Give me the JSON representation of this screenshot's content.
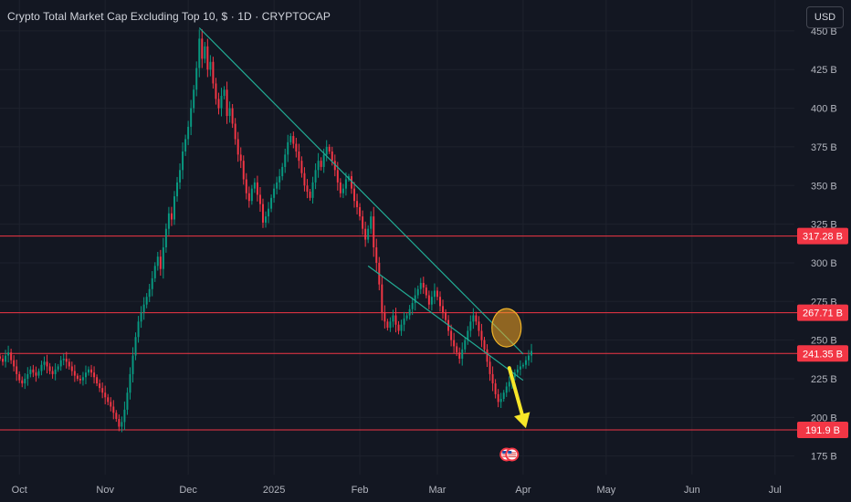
{
  "header": {
    "title": "Crypto Total Market Cap Excluding Top 10, $ · 1D · CRYPTOCAP",
    "currency": "USD"
  },
  "colors": {
    "background": "#131722",
    "grid": "#1e222d",
    "up": "#089981",
    "down": "#f23645",
    "level_line": "#f23645",
    "trendline": "#22ab94",
    "highlight_circle": "#f5a623",
    "arrow": "#f7e628",
    "axis_text": "#b2b5be"
  },
  "icons": {
    "event_flags": [
      "us-flag-icon",
      "us-flag-icon"
    ]
  },
  "chart_data": {
    "type": "candlestick",
    "title": "Crypto Total Market Cap Excluding Top 10, $ · 1D · CRYPTOCAP",
    "unit": "B",
    "x_ticks": [
      "Oct",
      "Nov",
      "Dec",
      "2025",
      "Feb",
      "Mar",
      "Apr",
      "May",
      "Jun",
      "Jul"
    ],
    "y_ticks": [
      "175 B",
      "200 B",
      "225 B",
      "250 B",
      "275 B",
      "300 B",
      "325 B",
      "350 B",
      "375 B",
      "400 B",
      "425 B",
      "450 B"
    ],
    "ylim": [
      163,
      470
    ],
    "xlim": [
      "2024-09-24",
      "2025-07-08"
    ],
    "levels": [
      {
        "value": 317.28,
        "label": "317.28 B"
      },
      {
        "value": 267.71,
        "label": "267.71 B"
      },
      {
        "value": 241.35,
        "label": "241.35 B"
      },
      {
        "value": 191.9,
        "label": "191.9 B"
      }
    ],
    "trendlines": [
      {
        "from": [
          "2024-12-05",
          452
        ],
        "to": [
          "2025-04-01",
          241
        ]
      },
      {
        "from": [
          "2025-02-04",
          298
        ],
        "to": [
          "2025-04-01",
          224
        ]
      }
    ],
    "highlight": {
      "date": "2025-03-26",
      "value": 258
    },
    "arrow": {
      "from": [
        "2025-03-27",
        232
      ],
      "to": [
        "2025-04-02",
        193
      ]
    },
    "events": [
      {
        "date": "2025-03-26",
        "icon": "us-flag-icon"
      },
      {
        "date": "2025-03-28",
        "icon": "us-flag-icon"
      }
    ],
    "close_series": {
      "start": "2024-09-24",
      "closes": [
        238,
        236,
        240,
        242,
        237,
        233,
        228,
        224,
        222,
        225,
        228,
        231,
        229,
        227,
        230,
        234,
        236,
        233,
        230,
        228,
        231,
        233,
        237,
        238,
        236,
        233,
        230,
        227,
        225,
        224,
        226,
        229,
        231,
        229,
        226,
        222,
        219,
        216,
        213,
        210,
        207,
        203,
        199,
        194,
        197,
        205,
        216,
        228,
        240,
        252,
        262,
        268,
        273,
        278,
        283,
        290,
        298,
        304,
        296,
        310,
        322,
        332,
        328,
        343,
        352,
        360,
        372,
        380,
        388,
        400,
        412,
        426,
        445,
        432,
        440,
        425,
        430,
        416,
        406,
        400,
        408,
        412,
        395,
        400,
        390,
        380,
        370,
        366,
        354,
        345,
        340,
        348,
        352,
        344,
        338,
        326,
        330,
        335,
        342,
        348,
        352,
        356,
        362,
        370,
        378,
        382,
        377,
        372,
        366,
        358,
        350,
        346,
        342,
        352,
        360,
        366,
        362,
        370,
        375,
        372,
        366,
        360,
        352,
        345,
        348,
        354,
        356,
        348,
        340,
        336,
        330,
        322,
        315,
        322,
        330,
        310,
        300,
        286,
        268,
        262,
        258,
        262,
        266,
        260,
        256,
        260,
        264,
        266,
        270,
        274,
        279,
        283,
        287,
        284,
        279,
        273,
        278,
        282,
        278,
        272,
        268,
        263,
        256,
        250,
        246,
        242,
        238,
        244,
        250,
        256,
        262,
        266,
        262,
        256,
        250,
        244,
        236,
        228,
        222,
        215,
        210,
        212,
        216,
        220,
        223,
        226,
        229,
        231,
        233,
        234,
        237,
        240,
        243
      ]
    }
  }
}
